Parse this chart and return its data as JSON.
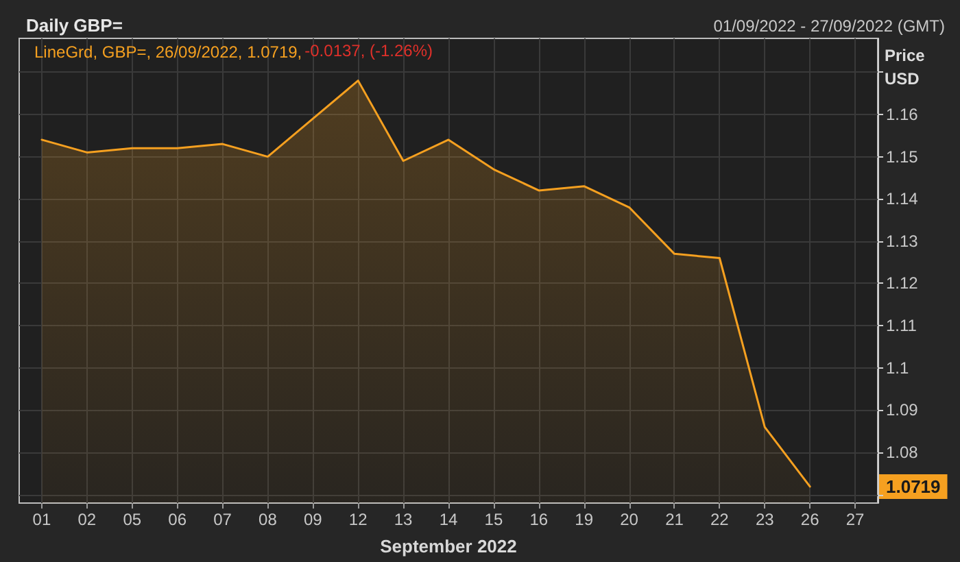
{
  "chart_data": {
    "type": "area",
    "title": "Daily GBP=",
    "subtitle": "01/09/2022 - 27/09/2022 (GMT)",
    "xlabel": "September 2022",
    "ylabel": "Price USD",
    "categories": [
      "01",
      "02",
      "05",
      "06",
      "07",
      "08",
      "09",
      "12",
      "13",
      "14",
      "15",
      "16",
      "19",
      "20",
      "21",
      "22",
      "23",
      "26",
      "27"
    ],
    "series": [
      {
        "name": "LineGrd, GBP=, 26/09/2022, 1.0719,",
        "color": "#f5a020",
        "values": [
          1.154,
          1.151,
          1.152,
          1.152,
          1.153,
          1.15,
          1.159,
          1.168,
          1.149,
          1.154,
          1.147,
          1.142,
          1.143,
          1.138,
          1.127,
          1.126,
          1.086,
          1.0719,
          null
        ]
      }
    ],
    "annotations": [
      "-0.0137, (-1.26%)",
      "1.0719"
    ],
    "ylim": [
      1.068,
      1.178
    ],
    "yticks": [
      {
        "value": 1.07,
        "label": null
      },
      1.08,
      1.09,
      1.1,
      1.11,
      1.12,
      1.13,
      1.14,
      1.15,
      1.16,
      {
        "value": 1.17,
        "label": null
      }
    ],
    "grid": true,
    "legend": "top left",
    "marker": "none",
    "line_style": "solid"
  }
}
